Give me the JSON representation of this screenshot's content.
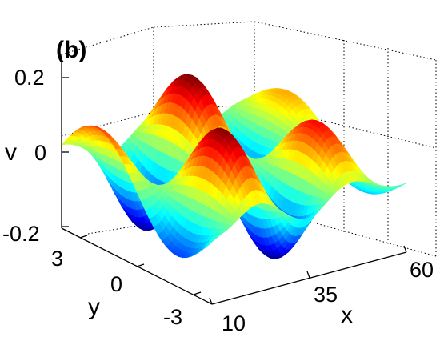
{
  "chart_data": {
    "type": "surface",
    "panel_label": "(b)",
    "xlabel": "x",
    "ylabel": "y",
    "zlabel": "v",
    "xlim": [
      10,
      60
    ],
    "ylim": [
      -3,
      3
    ],
    "zlim": [
      -0.2,
      0.2
    ],
    "x_ticks": [
      "10",
      "35",
      "60"
    ],
    "y_ticks": [
      "3",
      "0",
      "-3"
    ],
    "z_ticks": [
      "0.2",
      "0",
      "-0.2"
    ],
    "grid": true,
    "colormap": "jet",
    "surface_description": "v(x,y) ≈ amplitude(x) · sin(π·y/3) · cos(2π·(x-10)/25), amplitude decreasing toward x=60",
    "samples": [
      {
        "x": 10,
        "y_profile_max": 0.05
      },
      {
        "x": 22.5,
        "y_profile_max": 0.2
      },
      {
        "x": 35,
        "y_profile_max": 0.2
      },
      {
        "x": 47.5,
        "y_profile_max": 0.2
      },
      {
        "x": 60,
        "y_profile_max": 0.05
      }
    ],
    "colors": {
      "low": "#0000ff",
      "mid": "#00ff80",
      "high": "#ff0000"
    }
  }
}
